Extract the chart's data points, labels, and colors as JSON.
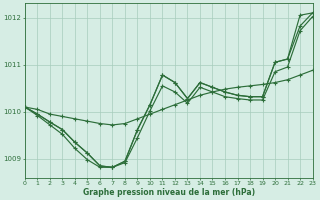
{
  "xlabel": "Graphe pression niveau de la mer (hPa)",
  "xlim": [
    0,
    23
  ],
  "ylim": [
    1008.6,
    1012.3
  ],
  "yticks": [
    1009,
    1010,
    1011,
    1012
  ],
  "xticks": [
    0,
    1,
    2,
    3,
    4,
    5,
    6,
    7,
    8,
    9,
    10,
    11,
    12,
    13,
    14,
    15,
    16,
    17,
    18,
    19,
    20,
    21,
    22,
    23
  ],
  "background_color": "#d6ede4",
  "grid_color": "#a8ccbc",
  "line_color": "#2d6e3a",
  "s1": [
    1010.1,
    1010.05,
    1009.95,
    1009.9,
    1009.85,
    1009.8,
    1009.75,
    1009.72,
    1009.75,
    1009.85,
    1009.95,
    1010.05,
    1010.15,
    1010.25,
    1010.35,
    1010.42,
    1010.48,
    1010.52,
    1010.55,
    1010.58,
    1010.62,
    1010.68,
    1010.78,
    1010.88
  ],
  "s2": [
    1010.1,
    1009.95,
    1009.78,
    1009.62,
    1009.35,
    1009.12,
    1008.85,
    1008.82,
    1008.95,
    1009.62,
    1010.15,
    1010.78,
    1010.62,
    1010.28,
    1010.62,
    1010.52,
    1010.42,
    1010.35,
    1010.32,
    1010.32,
    1011.05,
    1011.12,
    1012.05,
    1012.1
  ],
  "s3": [
    1010.1,
    1009.95,
    1009.78,
    1009.62,
    1009.35,
    1009.12,
    1008.85,
    1008.82,
    1008.95,
    1009.62,
    1010.15,
    1010.78,
    1010.62,
    1010.28,
    1010.62,
    1010.52,
    1010.42,
    1010.35,
    1010.32,
    1010.32,
    1011.05,
    1011.12,
    1011.82,
    1012.1
  ],
  "s4": [
    1010.1,
    1009.92,
    1009.72,
    1009.52,
    1009.22,
    1008.98,
    1008.82,
    1008.82,
    1008.92,
    1009.45,
    1010.02,
    1010.55,
    1010.42,
    1010.18,
    1010.52,
    1010.42,
    1010.32,
    1010.28,
    1010.25,
    1010.25,
    1010.85,
    1010.95,
    1011.72,
    1012.02
  ]
}
